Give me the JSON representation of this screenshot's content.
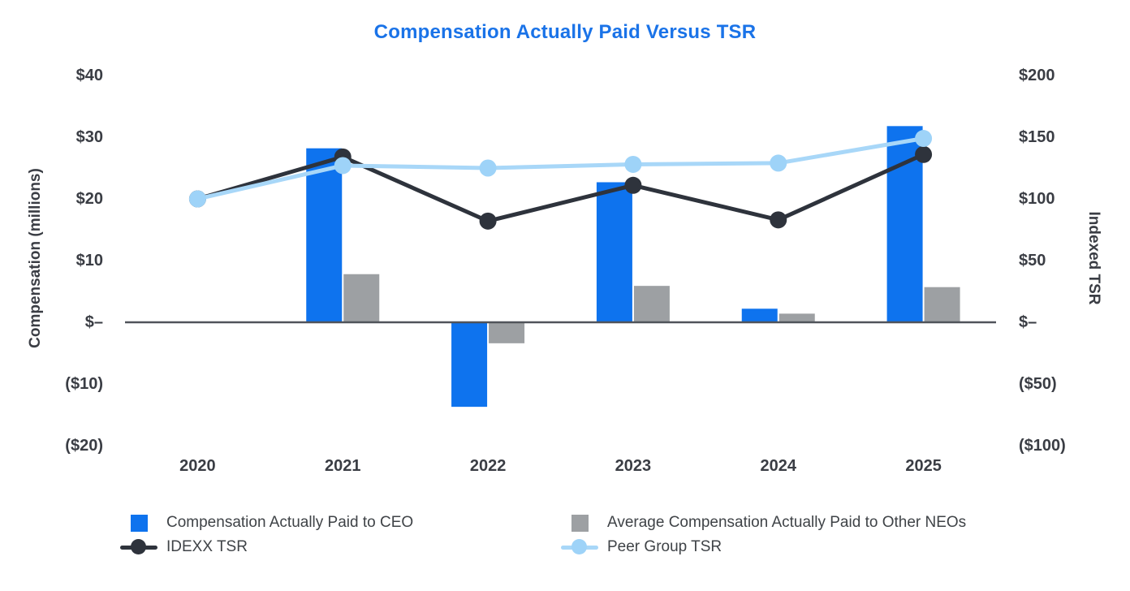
{
  "title": "Compensation Actually Paid Versus TSR",
  "colors": {
    "title_blue": "#1a73e8",
    "ceo_bar_blue": "#0e73ee",
    "neo_bar_gray": "#9da0a3",
    "idexx_dark": "#2e333c",
    "peer_light_blue_line": "#a8d7f8",
    "peer_light_blue_marker": "#9ed3f8",
    "axis_text": "#3a3d44",
    "baseline": "#50545a"
  },
  "chart_data": {
    "type": "bar+line combo (dual axis)",
    "title": "Compensation Actually Paid Versus TSR",
    "categories": [
      "2020",
      "2021",
      "2022",
      "2023",
      "2024",
      "2025"
    ],
    "bar_series": [
      {
        "name": "Compensation Actually Paid to CEO",
        "axis": "left",
        "color": "#0e73ee",
        "values": [
          null,
          28.2,
          -13.7,
          22.7,
          2.2,
          31.8
        ]
      },
      {
        "name": "Average Compensation Actually Paid to Other NEOs",
        "axis": "left",
        "color": "#9da0a3",
        "values": [
          null,
          7.8,
          -3.4,
          5.9,
          1.4,
          5.7
        ]
      }
    ],
    "line_series": [
      {
        "name": "IDEXX TSR",
        "axis": "right",
        "color": "#2e333c",
        "marker_color": "#2e333c",
        "values": [
          100,
          134,
          82,
          111,
          83,
          136
        ]
      },
      {
        "name": "Peer Group TSR",
        "axis": "right",
        "color": "#a8d7f8",
        "marker_color": "#9ed3f8",
        "values": [
          100,
          127,
          125,
          128,
          129,
          149
        ]
      }
    ],
    "left_axis": {
      "title": "Compensation (millions)",
      "ticks": [
        "$40",
        "$30",
        "$20",
        "$10",
        "$–",
        "($10)",
        "($20)"
      ],
      "tick_values": [
        40,
        30,
        20,
        10,
        0,
        -10,
        -20
      ],
      "range": [
        -20,
        40
      ]
    },
    "right_axis": {
      "title": "Indexed TSR",
      "ticks": [
        "$200",
        "$150",
        "$100",
        "$50",
        "$–",
        "($50)",
        "($100)"
      ],
      "tick_values": [
        200,
        150,
        100,
        50,
        0,
        -50,
        -100
      ],
      "range": [
        -100,
        200
      ]
    },
    "grid": false,
    "legend_position": "bottom"
  },
  "legend": {
    "items": [
      {
        "label": "Compensation Actually Paid to CEO",
        "marker": "square",
        "color": "#0e73ee"
      },
      {
        "label": "Average Compensation Actually Paid to Other NEOs",
        "marker": "square",
        "color": "#9da0a3"
      },
      {
        "label": "IDEXX TSR",
        "marker": "line-dot",
        "color": "#2e333c",
        "dot_color": "#2e333c"
      },
      {
        "label": "Peer Group TSR",
        "marker": "line-dot",
        "color": "#a8d7f8",
        "dot_color": "#9ed3f8"
      }
    ]
  }
}
